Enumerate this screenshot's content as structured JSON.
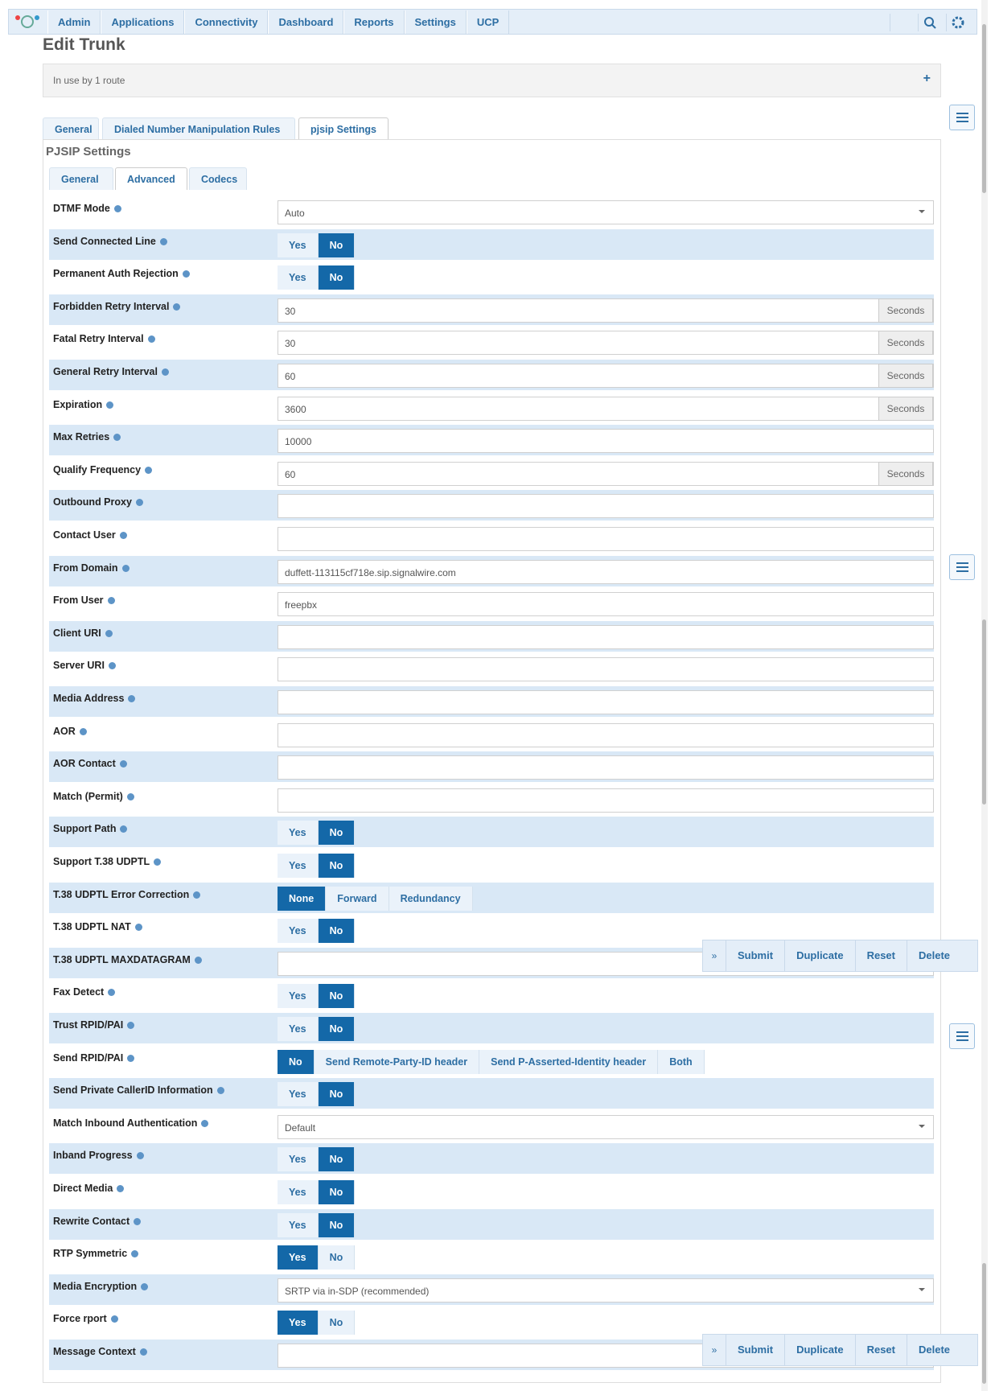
{
  "nav": {
    "items": [
      "Admin",
      "Applications",
      "Connectivity",
      "Dashboard",
      "Reports",
      "Settings",
      "UCP"
    ]
  },
  "header": {
    "title": "Edit Trunk",
    "usage": "In use by 1 route"
  },
  "tabs": {
    "items": [
      "General",
      "Dialed Number Manipulation Rules",
      "pjsip Settings"
    ],
    "active": 2
  },
  "section": {
    "title": "PJSIP Settings",
    "tabs": [
      "General",
      "Advanced",
      "Codecs"
    ],
    "active": 1
  },
  "rows": [
    {
      "label": "DTMF Mode",
      "select": "Auto"
    },
    {
      "label": "Send Connected Line",
      "options": [
        "Yes",
        "No"
      ],
      "selected": 1
    },
    {
      "label": "Permanent Auth Rejection",
      "options": [
        "Yes",
        "No"
      ],
      "selected": 1
    },
    {
      "label": "Forbidden Retry Interval",
      "value": "30",
      "addon": "Seconds"
    },
    {
      "label": "Fatal Retry Interval",
      "value": "30",
      "addon": "Seconds"
    },
    {
      "label": "General Retry Interval",
      "value": "60",
      "addon": "Seconds"
    },
    {
      "label": "Expiration",
      "value": "3600",
      "addon": "Seconds"
    },
    {
      "label": "Max Retries",
      "value": "10000"
    },
    {
      "label": "Qualify Frequency",
      "value": "60",
      "addon": "Seconds"
    },
    {
      "label": "Outbound Proxy"
    },
    {
      "label": "Contact User"
    },
    {
      "label": "From Domain",
      "value": "duffett-113115cf718e.sip.signalwire.com"
    },
    {
      "label": "From User",
      "value": "freepbx"
    },
    {
      "label": "Client URI"
    },
    {
      "label": "Server URI"
    },
    {
      "label": "Media Address"
    },
    {
      "label": "AOR"
    },
    {
      "label": "AOR Contact"
    },
    {
      "label": "Match (Permit)"
    },
    {
      "label": "Support Path",
      "options": [
        "Yes",
        "No"
      ],
      "selected": 1
    },
    {
      "label": "Support T.38 UDPTL",
      "options": [
        "Yes",
        "No"
      ],
      "selected": 1
    },
    {
      "label": "T.38 UDPTL Error Correction",
      "options": [
        "None",
        "Forward",
        "Redundancy"
      ],
      "selected": 0
    },
    {
      "label": "T.38 UDPTL NAT",
      "options": [
        "Yes",
        "No"
      ],
      "selected": 1
    },
    {
      "label": "T.38 UDPTL MAXDATAGRAM"
    },
    {
      "label": "Fax Detect",
      "options": [
        "Yes",
        "No"
      ],
      "selected": 1
    },
    {
      "label": "Trust RPID/PAI",
      "options": [
        "Yes",
        "No"
      ],
      "selected": 1
    },
    {
      "label": "Send RPID/PAI",
      "options": [
        "No",
        "Send Remote-Party-ID header",
        "Send P-Asserted-Identity header",
        "Both"
      ],
      "selected": 0
    },
    {
      "label": "Send Private CallerID Information",
      "options": [
        "Yes",
        "No"
      ],
      "selected": 1
    },
    {
      "label": "Match Inbound Authentication",
      "select": "Default"
    },
    {
      "label": "Inband Progress",
      "options": [
        "Yes",
        "No"
      ],
      "selected": 1
    },
    {
      "label": "Direct Media",
      "options": [
        "Yes",
        "No"
      ],
      "selected": 1
    },
    {
      "label": "Rewrite Contact",
      "options": [
        "Yes",
        "No"
      ],
      "selected": 1
    },
    {
      "label": "RTP Symmetric",
      "options": [
        "Yes",
        "No"
      ],
      "selected": 0
    },
    {
      "label": "Media Encryption",
      "select": "SRTP via in-SDP (recommended)"
    },
    {
      "label": "Force rport",
      "options": [
        "Yes",
        "No"
      ],
      "selected": 0
    },
    {
      "label": "Message Context"
    }
  ],
  "actions": [
    "Submit",
    "Duplicate",
    "Reset",
    "Delete"
  ]
}
